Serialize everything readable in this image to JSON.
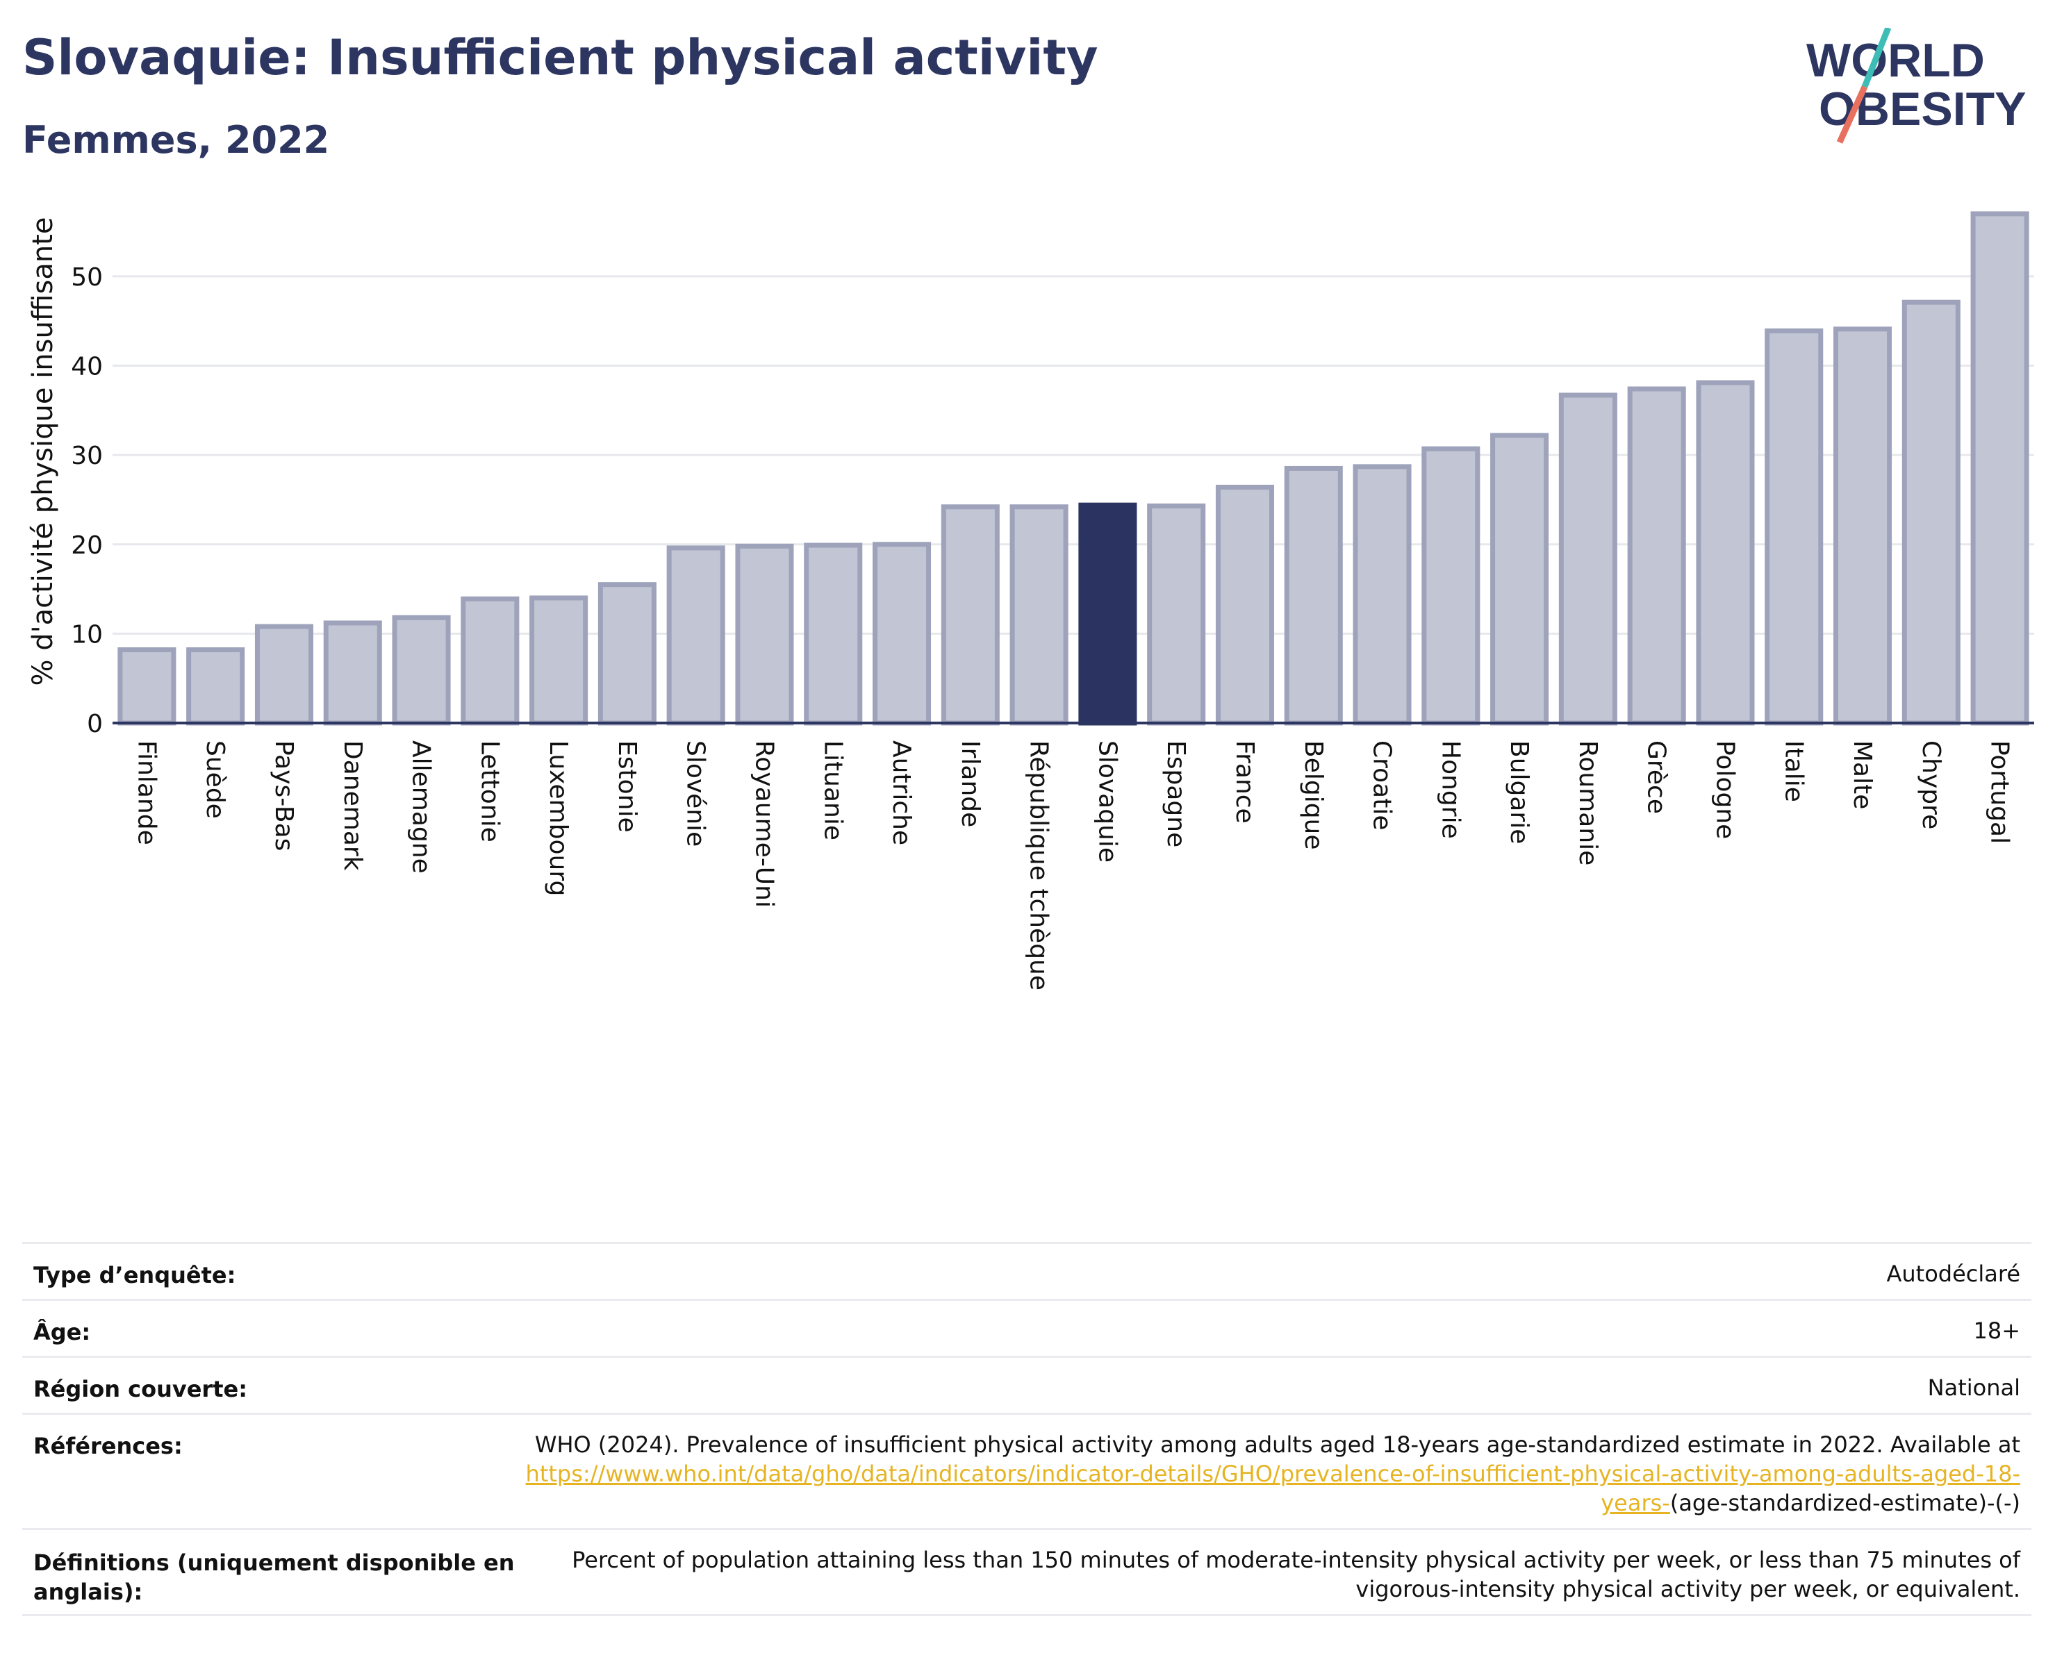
{
  "header": {
    "title": "Slovaquie: Insufficient physical activity",
    "subtitle": "Femmes, 2022"
  },
  "logo": {
    "line1": "W",
    "o1": "O",
    "line1b": "RLD",
    "o2": "O",
    "line2b": "BESITY"
  },
  "colors": {
    "bar": "#c2c5d3",
    "bar_border": "#9ea3bb",
    "highlight": "#2b3461",
    "title": "#2d3561",
    "link": "#e6b422",
    "logo_teal": "#3dbdb5",
    "logo_coral": "#e8705e"
  },
  "chart_data": {
    "type": "bar",
    "ylabel": "% d'activité physique insuffisante",
    "ylim": [
      0,
      58
    ],
    "yticks": [
      0,
      10,
      20,
      30,
      40,
      50
    ],
    "grid": true,
    "highlight": "Slovaquie",
    "categories": [
      "Finlande",
      "Suède",
      "Pays-Bas",
      "Danemark",
      "Allemagne",
      "Lettonie",
      "Luxembourg",
      "Estonie",
      "Slovénie",
      "Royaume-Uni",
      "Lituanie",
      "Autriche",
      "Irlande",
      "République tchèque",
      "Slovaquie",
      "Espagne",
      "France",
      "Belgique",
      "Croatie",
      "Hongrie",
      "Bulgarie",
      "Roumanie",
      "Grèce",
      "Pologne",
      "Italie",
      "Malte",
      "Chypre",
      "Portugal"
    ],
    "values": [
      8.2,
      8.2,
      10.8,
      11.2,
      11.8,
      13.9,
      14.0,
      15.5,
      19.6,
      19.8,
      19.9,
      20.0,
      24.2,
      24.2,
      24.4,
      24.3,
      26.4,
      28.5,
      28.7,
      30.7,
      32.2,
      36.7,
      37.4,
      38.1,
      43.9,
      44.1,
      47.1,
      57.0
    ]
  },
  "info_rows": [
    {
      "key": "Type d’enquête:",
      "value": "Autodéclaré"
    },
    {
      "key": "Âge:",
      "value": "18+"
    },
    {
      "key": "Région couverte:",
      "value": "National"
    },
    {
      "key": "Références:",
      "value_pre": "WHO (2024). Prevalence of insufficient physical activity among adults aged 18-years age-standardized estimate in 2022. Available at",
      "link": "https://www.who.int/data/gho/data/indicators/indicator-details/GHO/prevalence-of-insufficient-physical-activity-among-adults-aged-18-years-",
      "value_post": "(age-standardized-estimate)-(-)"
    },
    {
      "key": "Définitions (uniquement disponible en anglais):",
      "value": "Percent of population attaining less than 150 minutes of moderate-intensity physical activity per week, or less than 75 minutes of vigorous-intensity physical activity per week, or equivalent."
    }
  ]
}
